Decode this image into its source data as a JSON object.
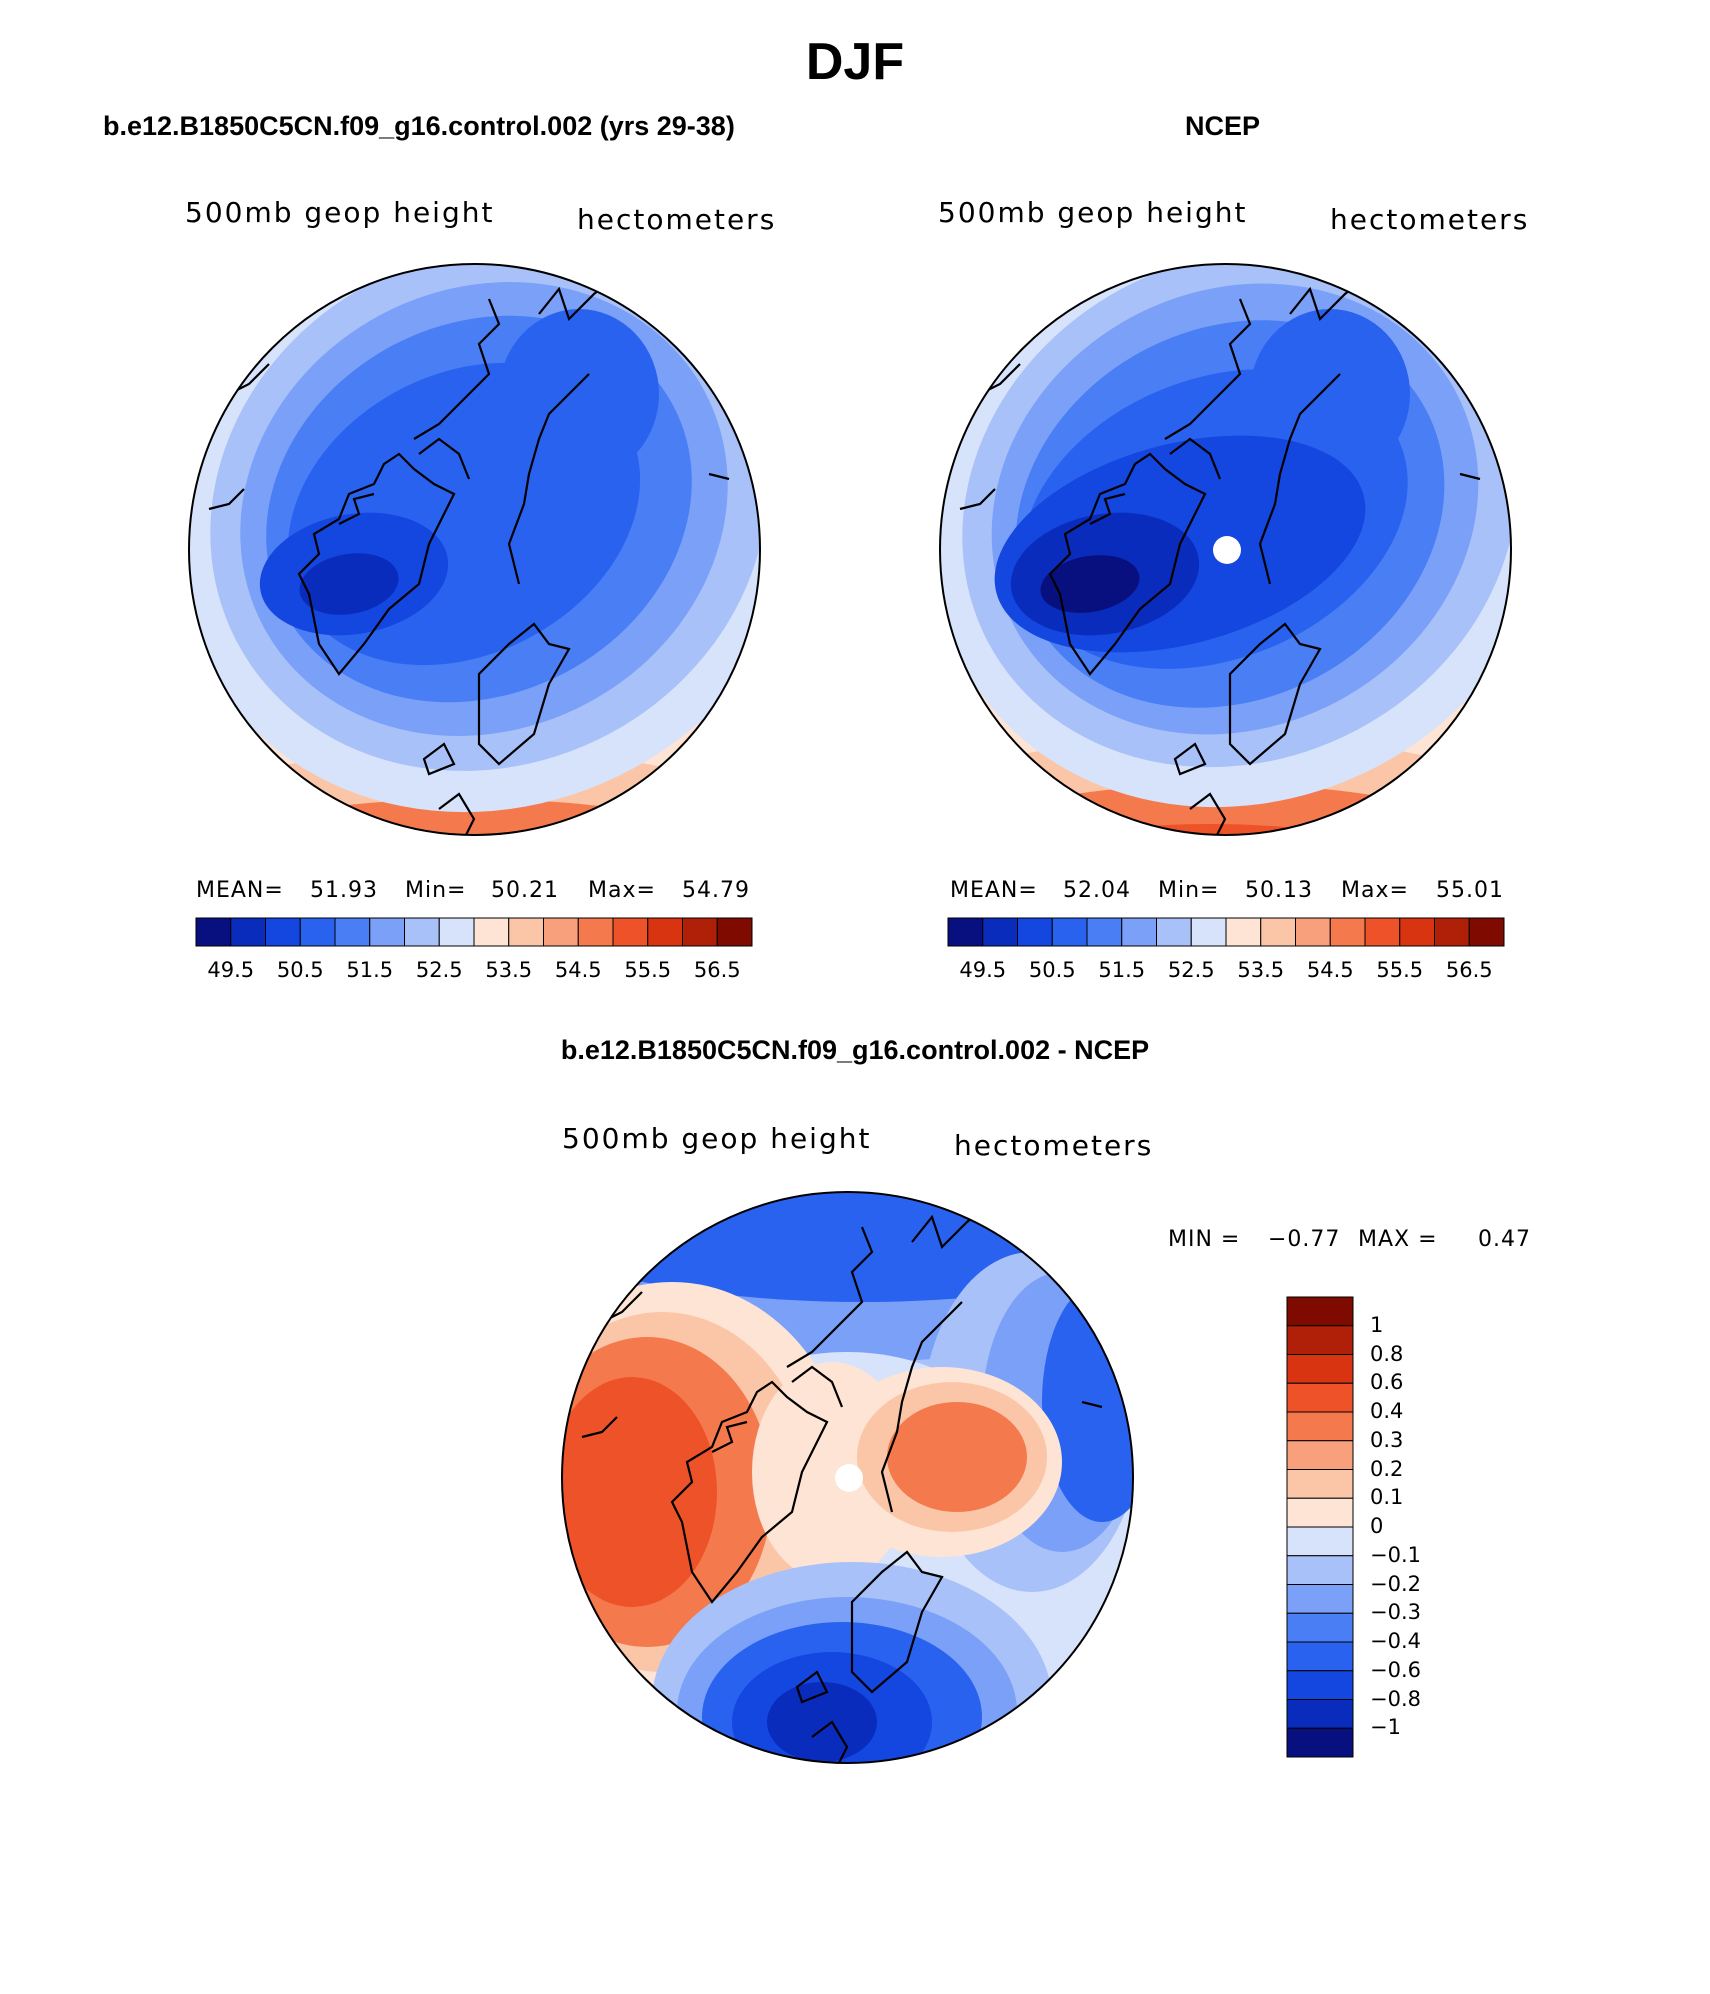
{
  "figure_title": "DJF",
  "panels": {
    "model": {
      "title": "b.e12.B1850C5CN.f09_g16.control.002 (yrs 29-38)",
      "field_label": "500mb geop height",
      "units_label": "hectometers",
      "stats": {
        "mean_label": "MEAN=",
        "mean": "51.93",
        "min_label": "Min=",
        "min": "50.21",
        "max_label": "Max=",
        "max": "54.79"
      }
    },
    "obs": {
      "title": "NCEP",
      "field_label": "500mb geop height",
      "units_label": "hectometers",
      "stats": {
        "mean_label": "MEAN=",
        "mean": "52.04",
        "min_label": "Min=",
        "min": "50.13",
        "max_label": "Max=",
        "max": "55.01"
      }
    },
    "diff": {
      "title": "b.e12.B1850C5CN.f09_g16.control.002 - NCEP",
      "field_label": "500mb geop height",
      "units_label": "hectometers",
      "stats": {
        "min_label": "MIN =",
        "min": "−0.77",
        "max_label": "MAX =",
        "max": "0.47"
      }
    }
  },
  "colorbar_main": {
    "colors": [
      "#08107f",
      "#0a2cbd",
      "#1446e0",
      "#2a62f0",
      "#4a7ef5",
      "#7aa0f8",
      "#a9c1f9",
      "#d6e3fb",
      "#fde4d4",
      "#fbc6a8",
      "#f8a07c",
      "#f47a4e",
      "#ee5228",
      "#d83412",
      "#b02008",
      "#7e0a00"
    ],
    "tick_labels": [
      "49.5",
      "50.5",
      "51.5",
      "52.5",
      "53.5",
      "54.5",
      "55.5",
      "56.5"
    ]
  },
  "colorbar_diff": {
    "colors": [
      "#7e0a00",
      "#b02008",
      "#d83412",
      "#ee5228",
      "#f47a4e",
      "#f8a07c",
      "#fbc6a8",
      "#fde4d4",
      "#d6e3fb",
      "#a9c1f9",
      "#7aa0f8",
      "#4a7ef5",
      "#2a62f0",
      "#1446e0",
      "#0a2cbd",
      "#08107f"
    ],
    "tick_labels": [
      "1",
      "0.8",
      "0.6",
      "0.4",
      "0.3",
      "0.2",
      "0.1",
      "0",
      "−0.1",
      "−0.2",
      "−0.3",
      "−0.4",
      "−0.6",
      "−0.8",
      "−1"
    ]
  }
}
